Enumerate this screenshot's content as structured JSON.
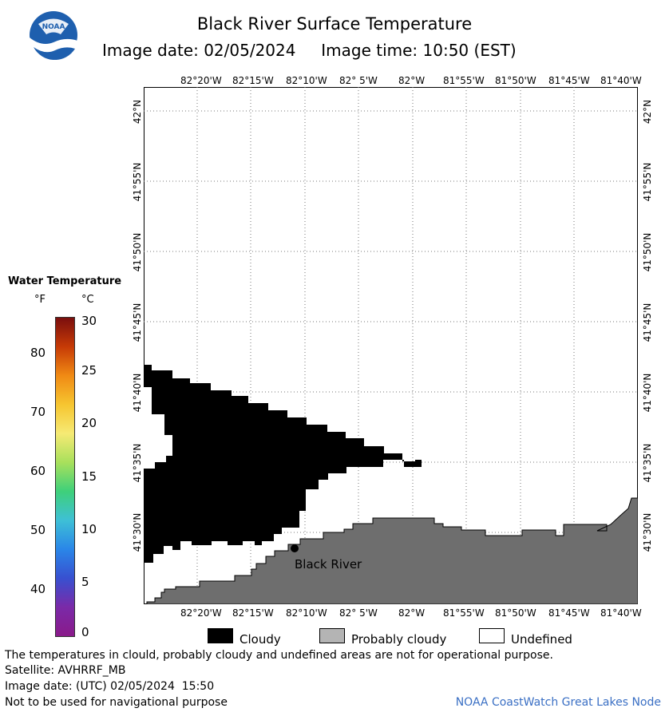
{
  "header": {
    "title": "Black River Surface Temperature",
    "subtitle": "Image date: 02/05/2024     Image time: 10:50 (EST)",
    "logo_text": "NOAA"
  },
  "legend": {
    "title": "Water Temperature",
    "unit_f": "°F",
    "unit_c": "°C",
    "f_ticks": [
      "80",
      "70",
      "60",
      "50",
      "40"
    ],
    "c_ticks": [
      "30",
      "25",
      "20",
      "15",
      "10",
      "5",
      "0"
    ],
    "colors": [
      "#7a0e0e",
      "#c63a06",
      "#f08a14",
      "#f6c530",
      "#f6ea74",
      "#a8e05c",
      "#3ed07a",
      "#3ec0d6",
      "#2a86e8",
      "#3850d0",
      "#7a2aa8",
      "#8a1a8a"
    ]
  },
  "map": {
    "lon_labels": [
      "82°20'W",
      "82°15'W",
      "82°10'W",
      "82° 5'W",
      "82°W",
      "81°55'W",
      "81°50'W",
      "81°45'W",
      "81°40'W"
    ],
    "lat_labels": [
      "42°N",
      "41°55'N",
      "41°50'N",
      "41°45'N",
      "41°40'N",
      "41°35'N",
      "41°30'N"
    ],
    "place_name": "Black River",
    "cloud_color": "#000000",
    "land_color": "#6e6e6e"
  },
  "key": {
    "cloudy": "Cloudy",
    "probably_cloudy": "Probably cloudy",
    "undefined": "Undefined"
  },
  "footer": {
    "line1": "The temperatures in clould, probably cloudy and undefined areas are not for operational purpose.",
    "line2": "Satellite: AVHRRF_MB",
    "line3": "Image date: (UTC) 02/05/2024  15:50",
    "line4": "Not to be used for navigational purpose",
    "credit": "NOAA CoastWatch Great Lakes Node"
  }
}
